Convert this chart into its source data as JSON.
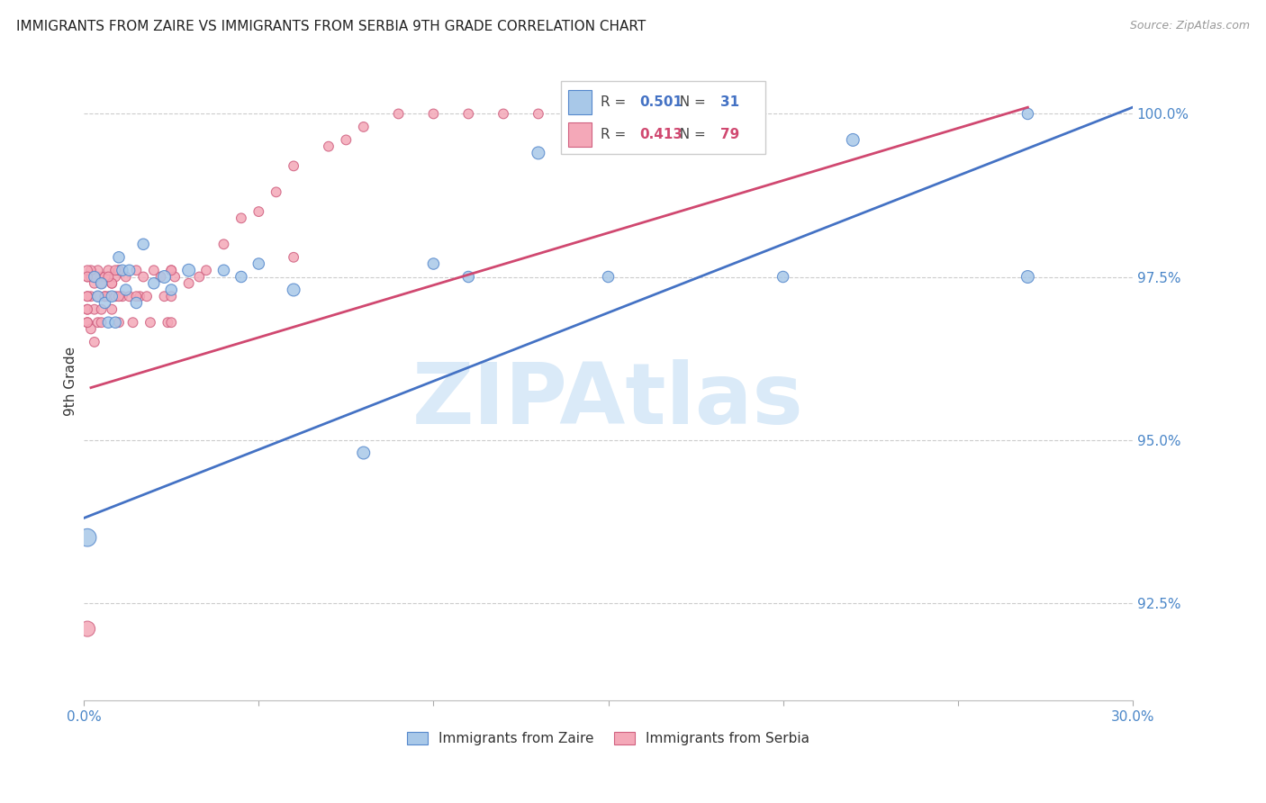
{
  "title": "IMMIGRANTS FROM ZAIRE VS IMMIGRANTS FROM SERBIA 9TH GRADE CORRELATION CHART",
  "source_text": "Source: ZipAtlas.com",
  "ylabel": "9th Grade",
  "xlim": [
    0.0,
    0.3
  ],
  "ylim": [
    0.91,
    1.008
  ],
  "xticks": [
    0.0,
    0.05,
    0.1,
    0.15,
    0.2,
    0.25,
    0.3
  ],
  "xticklabels": [
    "0.0%",
    "",
    "",
    "",
    "",
    "",
    "30.0%"
  ],
  "yticks": [
    0.925,
    0.95,
    0.975,
    1.0
  ],
  "yticklabels": [
    "92.5%",
    "95.0%",
    "97.5%",
    "100.0%"
  ],
  "legend_blue_label": "Immigrants from Zaire",
  "legend_pink_label": "Immigrants from Serbia",
  "r_blue": 0.501,
  "n_blue": 31,
  "r_pink": 0.413,
  "n_pink": 79,
  "blue_color": "#a8c8e8",
  "pink_color": "#f4a8b8",
  "blue_edge_color": "#5588cc",
  "pink_edge_color": "#d06080",
  "blue_line_color": "#4472c4",
  "pink_line_color": "#d04870",
  "watermark_color": "#daeaf8",
  "watermark": "ZIPAtlas",
  "blue_trend_x": [
    0.0,
    0.3
  ],
  "blue_trend_y": [
    0.938,
    1.001
  ],
  "pink_trend_x": [
    0.002,
    0.27
  ],
  "pink_trend_y": [
    0.958,
    1.001
  ],
  "blue_x": [
    0.001,
    0.003,
    0.004,
    0.005,
    0.006,
    0.007,
    0.008,
    0.009,
    0.01,
    0.011,
    0.012,
    0.013,
    0.015,
    0.017,
    0.02,
    0.023,
    0.025,
    0.03,
    0.04,
    0.045,
    0.05,
    0.06,
    0.08,
    0.1,
    0.11,
    0.13,
    0.15,
    0.2,
    0.22,
    0.27,
    0.27
  ],
  "blue_y": [
    0.935,
    0.975,
    0.972,
    0.974,
    0.971,
    0.968,
    0.972,
    0.968,
    0.978,
    0.976,
    0.973,
    0.976,
    0.971,
    0.98,
    0.974,
    0.975,
    0.973,
    0.976,
    0.976,
    0.975,
    0.977,
    0.973,
    0.948,
    0.977,
    0.975,
    0.994,
    0.975,
    0.975,
    0.996,
    1.0,
    0.975
  ],
  "blue_sizes": [
    200,
    80,
    80,
    80,
    80,
    80,
    80,
    80,
    80,
    80,
    80,
    80,
    80,
    80,
    80,
    100,
    80,
    100,
    80,
    80,
    80,
    100,
    100,
    80,
    80,
    100,
    80,
    80,
    100,
    80,
    100
  ],
  "pink_x": [
    0.001,
    0.001,
    0.001,
    0.002,
    0.002,
    0.002,
    0.003,
    0.003,
    0.003,
    0.004,
    0.004,
    0.005,
    0.005,
    0.005,
    0.006,
    0.006,
    0.007,
    0.007,
    0.008,
    0.008,
    0.009,
    0.009,
    0.01,
    0.01,
    0.011,
    0.012,
    0.013,
    0.014,
    0.015,
    0.016,
    0.017,
    0.018,
    0.019,
    0.02,
    0.022,
    0.023,
    0.024,
    0.025,
    0.026,
    0.03,
    0.033,
    0.035,
    0.04,
    0.045,
    0.05,
    0.055,
    0.06,
    0.07,
    0.075,
    0.08,
    0.09,
    0.1,
    0.11,
    0.12,
    0.13,
    0.14,
    0.15,
    0.06,
    0.025,
    0.025,
    0.025,
    0.015,
    0.01,
    0.01,
    0.009,
    0.008,
    0.007,
    0.006,
    0.005,
    0.004,
    0.003,
    0.002,
    0.001,
    0.001,
    0.001,
    0.001,
    0.001,
    0.001,
    0.001
  ],
  "pink_y": [
    0.97,
    0.975,
    0.968,
    0.972,
    0.975,
    0.967,
    0.974,
    0.97,
    0.965,
    0.972,
    0.968,
    0.975,
    0.97,
    0.968,
    0.972,
    0.975,
    0.976,
    0.972,
    0.974,
    0.97,
    0.975,
    0.972,
    0.976,
    0.968,
    0.972,
    0.975,
    0.972,
    0.968,
    0.976,
    0.972,
    0.975,
    0.972,
    0.968,
    0.976,
    0.975,
    0.972,
    0.968,
    0.976,
    0.975,
    0.974,
    0.975,
    0.976,
    0.98,
    0.984,
    0.985,
    0.988,
    0.992,
    0.995,
    0.996,
    0.998,
    1.0,
    1.0,
    1.0,
    1.0,
    1.0,
    1.0,
    1.0,
    0.978,
    0.976,
    0.972,
    0.968,
    0.972,
    0.976,
    0.972,
    0.976,
    0.974,
    0.975,
    0.972,
    0.974,
    0.976,
    0.975,
    0.976,
    0.976,
    0.972,
    0.968,
    0.97,
    0.975,
    0.972,
    0.921
  ],
  "pink_sizes": [
    60,
    60,
    60,
    60,
    60,
    60,
    60,
    60,
    60,
    60,
    60,
    60,
    60,
    60,
    60,
    60,
    60,
    60,
    60,
    60,
    60,
    60,
    60,
    60,
    60,
    60,
    60,
    60,
    60,
    60,
    60,
    60,
    60,
    60,
    60,
    60,
    60,
    60,
    60,
    60,
    60,
    60,
    60,
    60,
    60,
    60,
    60,
    60,
    60,
    60,
    60,
    60,
    60,
    60,
    60,
    60,
    60,
    60,
    60,
    60,
    60,
    60,
    60,
    60,
    60,
    60,
    60,
    60,
    60,
    60,
    60,
    60,
    60,
    60,
    60,
    60,
    60,
    60,
    150
  ]
}
